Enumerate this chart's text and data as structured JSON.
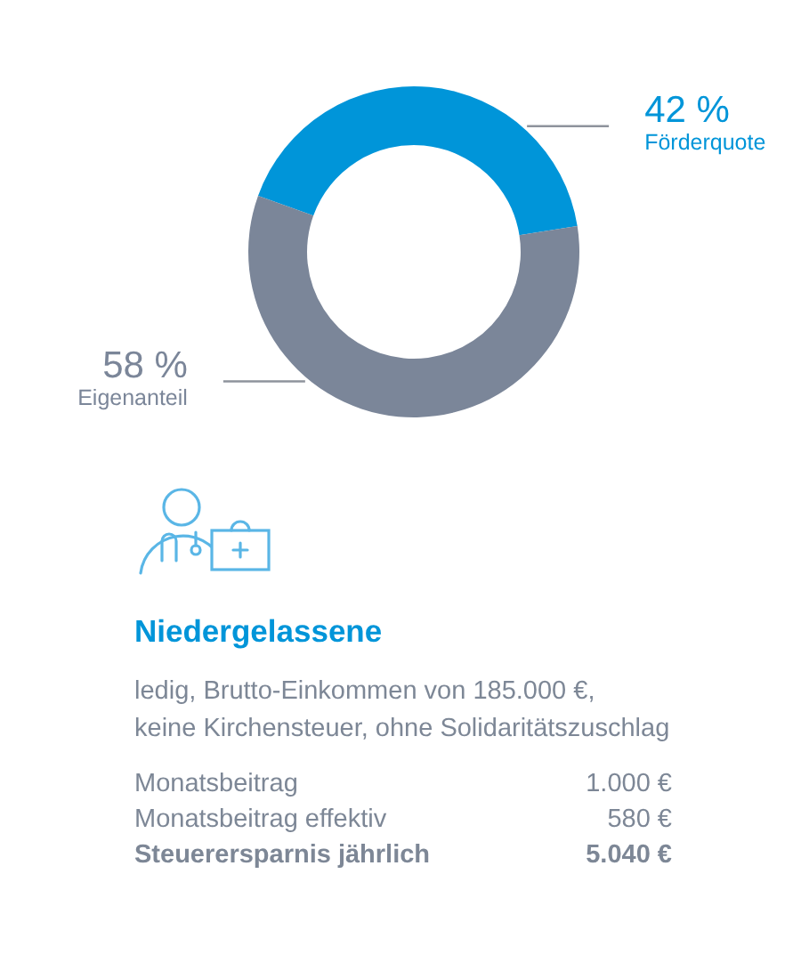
{
  "chart_data": {
    "type": "donut",
    "categories": [
      "Förderquote",
      "Eigenanteil"
    ],
    "values": [
      42,
      58
    ],
    "colors": [
      "#0095d9",
      "#7b8699"
    ],
    "value_labels": [
      "42 %",
      "58 %"
    ],
    "title": "Niedergelassene",
    "subtitle": "ledig, Brutto-Einkommen von 185.000 €,\nkeine Kirchensteuer, ohne Solidaritätszuschlag",
    "annotations": [
      "Monatsbeitrag",
      "1.000 €",
      "Monatsbeitrag effektiv",
      "580 €",
      "Steuerersparnis jährlich",
      "5.040 €"
    ]
  }
}
